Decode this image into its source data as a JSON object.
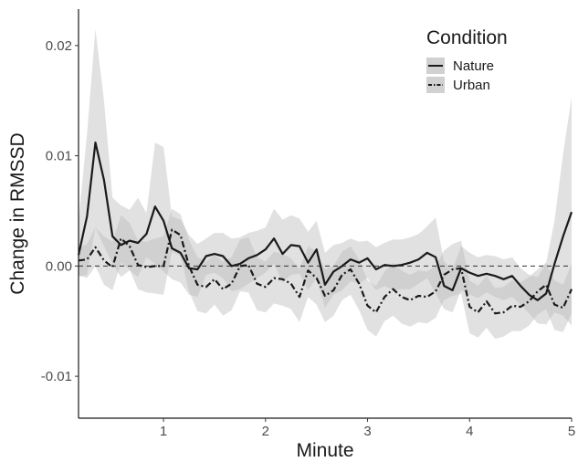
{
  "chart_data": {
    "type": "line",
    "title": "",
    "xlabel": "Minute",
    "ylabel": "Change in RMSSD",
    "xlim": [
      0.167,
      5.0
    ],
    "ylim": [
      -0.0138,
      0.0233
    ],
    "x_ticks": [
      1,
      2,
      3,
      4,
      5
    ],
    "x_tick_labels": [
      "1",
      "2",
      "3",
      "4",
      "5"
    ],
    "y_ticks": [
      -0.01,
      0.0,
      0.01,
      0.02
    ],
    "y_tick_labels": [
      "-0.01",
      "0.00",
      "0.01",
      "0.02"
    ],
    "reference_line": 0,
    "grid": false,
    "legend": {
      "title": "Condition",
      "position": "top-right"
    },
    "colors": {
      "line": "#1a1a1a",
      "ribbon": "#bdbdbd",
      "reference": "#333333"
    },
    "x": [
      0.167,
      0.25,
      0.333,
      0.417,
      0.5,
      0.583,
      0.667,
      0.75,
      0.833,
      0.917,
      1.0,
      1.083,
      1.167,
      1.25,
      1.333,
      1.417,
      1.5,
      1.583,
      1.667,
      1.75,
      1.833,
      1.917,
      2.0,
      2.083,
      2.167,
      2.25,
      2.333,
      2.417,
      2.5,
      2.583,
      2.667,
      2.75,
      2.833,
      2.917,
      3.0,
      3.083,
      3.167,
      3.25,
      3.333,
      3.417,
      3.5,
      3.583,
      3.667,
      3.75,
      3.833,
      3.917,
      4.0,
      4.083,
      4.167,
      4.25,
      4.333,
      4.417,
      4.5,
      4.583,
      4.667,
      4.75,
      4.833,
      4.917,
      5.0
    ],
    "series": [
      {
        "name": "Nature",
        "dash": "solid",
        "values": [
          0.001,
          0.0045,
          0.0112,
          0.0078,
          0.0027,
          0.0019,
          0.0023,
          0.0021,
          0.0029,
          0.0054,
          0.0041,
          0.0016,
          0.0012,
          -0.0002,
          -0.0003,
          0.0009,
          0.0011,
          0.0009,
          0.0,
          0.0002,
          0.0007,
          0.001,
          0.0015,
          0.0025,
          0.0011,
          0.0019,
          0.0018,
          0.0003,
          0.0015,
          -0.0017,
          -0.0005,
          0.0,
          0.0006,
          0.0003,
          0.0007,
          -0.0003,
          0.0001,
          0.0,
          0.0001,
          0.0003,
          0.0006,
          0.0012,
          0.0008,
          -0.0018,
          -0.0022,
          -0.0002,
          -0.0006,
          -0.0009,
          -0.0007,
          -0.0009,
          -0.0012,
          -0.0009,
          -0.0018,
          -0.0026,
          -0.0031,
          -0.0025,
          0.0002,
          0.0027,
          0.0049
        ],
        "upper": [
          0.004,
          0.012,
          0.0215,
          0.015,
          0.0062,
          0.0055,
          0.0051,
          0.0062,
          0.0048,
          0.0112,
          0.0108,
          0.0045,
          0.0042,
          0.0028,
          0.002,
          0.0025,
          0.003,
          0.003,
          0.0025,
          0.0026,
          0.003,
          0.0032,
          0.0035,
          0.0052,
          0.0042,
          0.0046,
          0.0043,
          0.0031,
          0.0041,
          0.0012,
          0.0019,
          0.0021,
          0.0025,
          0.0022,
          0.0023,
          0.0017,
          0.0021,
          0.0024,
          0.0024,
          0.0026,
          0.0029,
          0.0036,
          0.0044,
          0.0004,
          -0.0003,
          0.0018,
          0.0012,
          0.0008,
          0.001,
          0.0009,
          0.0006,
          0.0008,
          -0.0002,
          -0.0008,
          -0.001,
          0.0003,
          0.0041,
          0.0102,
          0.0153
        ],
        "lower": [
          -0.001,
          -0.0008,
          0.0035,
          0.0018,
          0.0002,
          -0.001,
          -0.0004,
          -0.001,
          0.0008,
          0.0002,
          -0.0005,
          -0.0012,
          -0.0015,
          -0.0026,
          -0.0028,
          -0.0008,
          -0.0006,
          -0.0011,
          -0.0023,
          -0.0021,
          -0.0016,
          -0.0011,
          -0.0006,
          0.0002,
          -0.0015,
          -0.0008,
          -0.0007,
          -0.0022,
          -0.0011,
          -0.0038,
          -0.0026,
          -0.0022,
          -0.0014,
          -0.0016,
          -0.0011,
          -0.0022,
          -0.0018,
          -0.0022,
          -0.0021,
          -0.0021,
          -0.0016,
          -0.0011,
          -0.0025,
          -0.0039,
          -0.0042,
          -0.0022,
          -0.0026,
          -0.0029,
          -0.0024,
          -0.0028,
          -0.0031,
          -0.0028,
          -0.0035,
          -0.0043,
          -0.0052,
          -0.0053,
          -0.0042,
          -0.0045,
          -0.0054
        ]
      },
      {
        "name": "Urban",
        "dash": "dashdot",
        "values": [
          0.0005,
          0.0006,
          0.0017,
          0.0005,
          -0.0001,
          0.0025,
          0.0018,
          0.0001,
          -0.0001,
          0.0,
          0.0,
          0.0033,
          0.0028,
          0.0,
          -0.0017,
          -0.0019,
          -0.0012,
          -0.0021,
          -0.0016,
          0.0,
          0.0001,
          -0.0016,
          -0.0019,
          -0.0011,
          -0.0012,
          -0.0016,
          -0.0028,
          -0.0004,
          -0.0011,
          -0.0027,
          -0.0022,
          -0.0008,
          -0.0003,
          -0.0016,
          -0.0036,
          -0.0042,
          -0.0028,
          -0.0021,
          -0.0028,
          -0.0031,
          -0.0027,
          -0.0028,
          -0.0023,
          -0.0008,
          -0.0003,
          -0.0002,
          -0.0037,
          -0.0042,
          -0.0032,
          -0.0043,
          -0.0042,
          -0.0036,
          -0.0037,
          -0.0032,
          -0.0023,
          -0.0017,
          -0.0035,
          -0.0038,
          -0.0021
        ],
        "upper": [
          0.0016,
          0.002,
          0.0035,
          0.0027,
          0.0022,
          0.0046,
          0.0039,
          0.0023,
          0.0022,
          0.0025,
          0.0027,
          0.0052,
          0.0047,
          0.0024,
          0.0008,
          0.0004,
          0.001,
          0.0004,
          0.0008,
          0.0024,
          0.0026,
          0.0008,
          0.0004,
          0.0013,
          0.0011,
          0.0007,
          -0.0003,
          0.0018,
          0.0013,
          -0.0003,
          0.0,
          0.0013,
          0.0018,
          0.0006,
          -0.0013,
          -0.0018,
          -0.0005,
          0.0003,
          -0.0004,
          -0.0008,
          -0.0004,
          -0.0005,
          0.0,
          0.0014,
          0.002,
          0.0023,
          -0.0013,
          -0.0018,
          -0.0009,
          -0.002,
          -0.0019,
          -0.0013,
          -0.0015,
          -0.001,
          -0.0003,
          0.0003,
          -0.0013,
          -0.0017,
          0.0002
        ],
        "lower": [
          -0.0008,
          -0.0011,
          0.0,
          -0.0017,
          -0.0022,
          0.0003,
          -0.0003,
          -0.0021,
          -0.0024,
          -0.0025,
          -0.0026,
          0.0013,
          0.0009,
          -0.0023,
          -0.0041,
          -0.0043,
          -0.0035,
          -0.0045,
          -0.004,
          -0.0023,
          -0.0024,
          -0.004,
          -0.0042,
          -0.0034,
          -0.0036,
          -0.0039,
          -0.0051,
          -0.0028,
          -0.0035,
          -0.0051,
          -0.0045,
          -0.0031,
          -0.0026,
          -0.004,
          -0.0058,
          -0.0064,
          -0.005,
          -0.0045,
          -0.0052,
          -0.0055,
          -0.0051,
          -0.0052,
          -0.0047,
          -0.0031,
          -0.0027,
          -0.0025,
          -0.0061,
          -0.0065,
          -0.0056,
          -0.0066,
          -0.0064,
          -0.0059,
          -0.0059,
          -0.0054,
          -0.0044,
          -0.0039,
          -0.0058,
          -0.006,
          -0.0043
        ]
      }
    ]
  }
}
